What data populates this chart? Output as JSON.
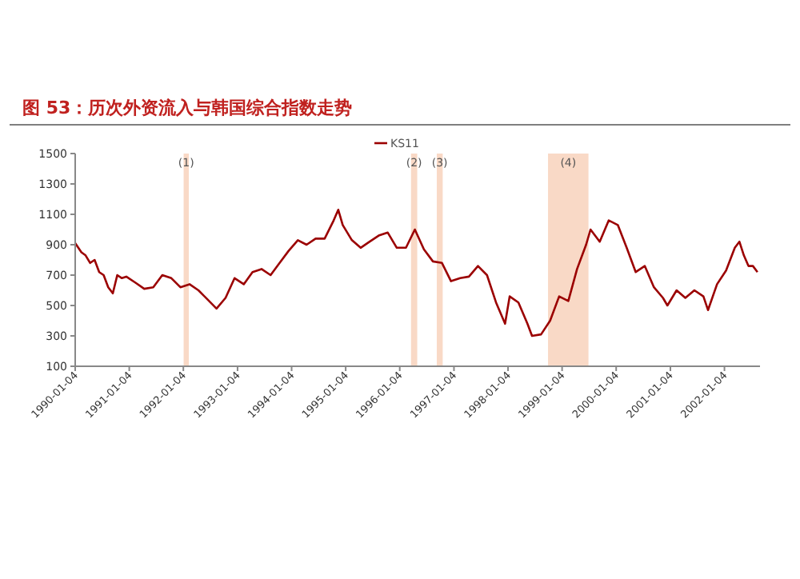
{
  "chart_data": {
    "type": "line",
    "title": "图 53：历次外资流入与韩国综合指数走势",
    "x": [
      "1990-01-04",
      "1990-02",
      "1990-03",
      "1990-04",
      "1990-05",
      "1990-06",
      "1990-07",
      "1990-08",
      "1990-09",
      "1990-10",
      "1990-11",
      "1990-12",
      "1991-02",
      "1991-04",
      "1991-06",
      "1991-08",
      "1991-10",
      "1991-12",
      "1992-02",
      "1992-04",
      "1992-06",
      "1992-08",
      "1992-10",
      "1992-12",
      "1993-02",
      "1993-04",
      "1993-06",
      "1993-08",
      "1993-10",
      "1993-12",
      "1994-02",
      "1994-04",
      "1994-06",
      "1994-08",
      "1994-10",
      "1994-11",
      "1994-12",
      "1995-02",
      "1995-04",
      "1995-06",
      "1995-08",
      "1995-10",
      "1995-12",
      "1996-02",
      "1996-04",
      "1996-06",
      "1996-08",
      "1996-10",
      "1996-12",
      "1997-02",
      "1997-04",
      "1997-06",
      "1997-08",
      "1997-10",
      "1997-12",
      "1998-01",
      "1998-03",
      "1998-05",
      "1998-06",
      "1998-08",
      "1998-10",
      "1998-12",
      "1999-02",
      "1999-04",
      "1999-06",
      "1999-07",
      "1999-09",
      "1999-11",
      "2000-01",
      "2000-03",
      "2000-05",
      "2000-07",
      "2000-09",
      "2000-11",
      "2000-12",
      "2001-02",
      "2001-04",
      "2001-06",
      "2001-08",
      "2001-09",
      "2001-11",
      "2002-01",
      "2002-03",
      "2002-04",
      "2002-05",
      "2002-06",
      "2002-07",
      "2002-08"
    ],
    "series": [
      {
        "name": "KS11",
        "color": "#9b0000",
        "values": [
          910,
          850,
          830,
          780,
          800,
          720,
          700,
          620,
          580,
          700,
          680,
          690,
          650,
          610,
          620,
          700,
          680,
          620,
          640,
          600,
          540,
          480,
          550,
          680,
          640,
          720,
          740,
          700,
          780,
          860,
          930,
          900,
          940,
          940,
          1060,
          1130,
          1030,
          930,
          880,
          920,
          960,
          980,
          880,
          880,
          1000,
          870,
          790,
          780,
          660,
          680,
          690,
          760,
          700,
          520,
          380,
          560,
          520,
          380,
          300,
          310,
          400,
          560,
          530,
          740,
          900,
          1000,
          920,
          1060,
          1030,
          880,
          720,
          760,
          620,
          550,
          500,
          600,
          550,
          600,
          560,
          470,
          640,
          730,
          880,
          920,
          830,
          760,
          760,
          720
        ]
      }
    ],
    "xlim": [
      "1990-01-04",
      "2002-09-01"
    ],
    "xticks": [
      {
        "value": "1990-01-04",
        "label": "1990-01-04"
      },
      {
        "value": "1991-01-04",
        "label": "1991-01-04"
      },
      {
        "value": "1992-01-04",
        "label": "1992-01-04"
      },
      {
        "value": "1993-01-04",
        "label": "1993-01-04"
      },
      {
        "value": "1994-01-04",
        "label": "1994-01-04"
      },
      {
        "value": "1995-01-04",
        "label": "1995-01-04"
      },
      {
        "value": "1996-01-04",
        "label": "1996-01-04"
      },
      {
        "value": "1997-01-04",
        "label": "1997-01-04"
      },
      {
        "value": "1998-01-04",
        "label": "1998-01-04"
      },
      {
        "value": "1999-01-04",
        "label": "1999-01-04"
      },
      {
        "value": "2000-01-04",
        "label": "2000-01-04"
      },
      {
        "value": "2001-01-04",
        "label": "2001-01-04"
      },
      {
        "value": "2002-01-04",
        "label": "2002-01-04"
      }
    ],
    "ylim": [
      100,
      1500
    ],
    "yticks": [
      100,
      300,
      500,
      700,
      900,
      1100,
      1300,
      1500
    ],
    "bands": [
      {
        "axis": "x",
        "from": "1992-01-06",
        "to": "1992-02-10",
        "label": "(1)",
        "color": "#f8d2bc"
      },
      {
        "axis": "x",
        "from": "1996-03-20",
        "to": "1996-05-01",
        "label": "(2)",
        "color": "#f8d2bc"
      },
      {
        "axis": "x",
        "from": "1996-09-10",
        "to": "1996-10-20",
        "label": "(3)",
        "color": "#f8d2bc"
      },
      {
        "axis": "x",
        "from": "1998-10-01",
        "to": "1999-07-01",
        "label": "(4)",
        "color": "#f8d2bc"
      }
    ],
    "legend": "top",
    "grid": false
  }
}
